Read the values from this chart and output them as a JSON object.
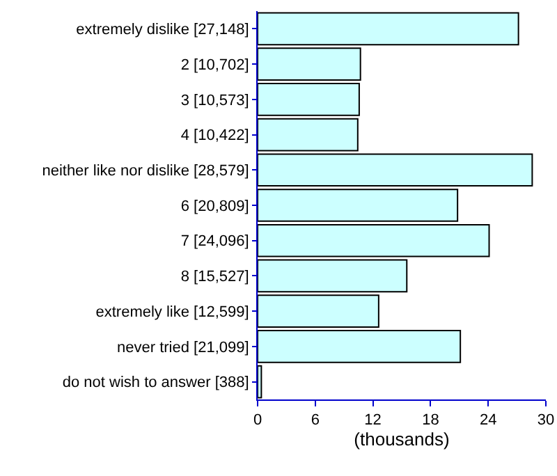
{
  "chart_data": {
    "type": "bar",
    "orientation": "horizontal",
    "xlabel": "(thousands)",
    "categories": [
      "extremely dislike [27,148]",
      "2 [10,702]",
      "3 [10,573]",
      "4 [10,422]",
      "neither like nor dislike [28,579]",
      "6 [20,809]",
      "7 [24,096]",
      "8 [15,527]",
      "extremely like [12,599]",
      "never tried [21,099]",
      "do not wish to answer [388]"
    ],
    "values": [
      27.148,
      10.702,
      10.573,
      10.422,
      28.579,
      20.809,
      24.096,
      15.527,
      12.599,
      21.099,
      0.388
    ],
    "color": "#ccffff",
    "xlim": [
      0,
      30
    ],
    "xticks": [
      0,
      6,
      12,
      18,
      24,
      30
    ]
  }
}
